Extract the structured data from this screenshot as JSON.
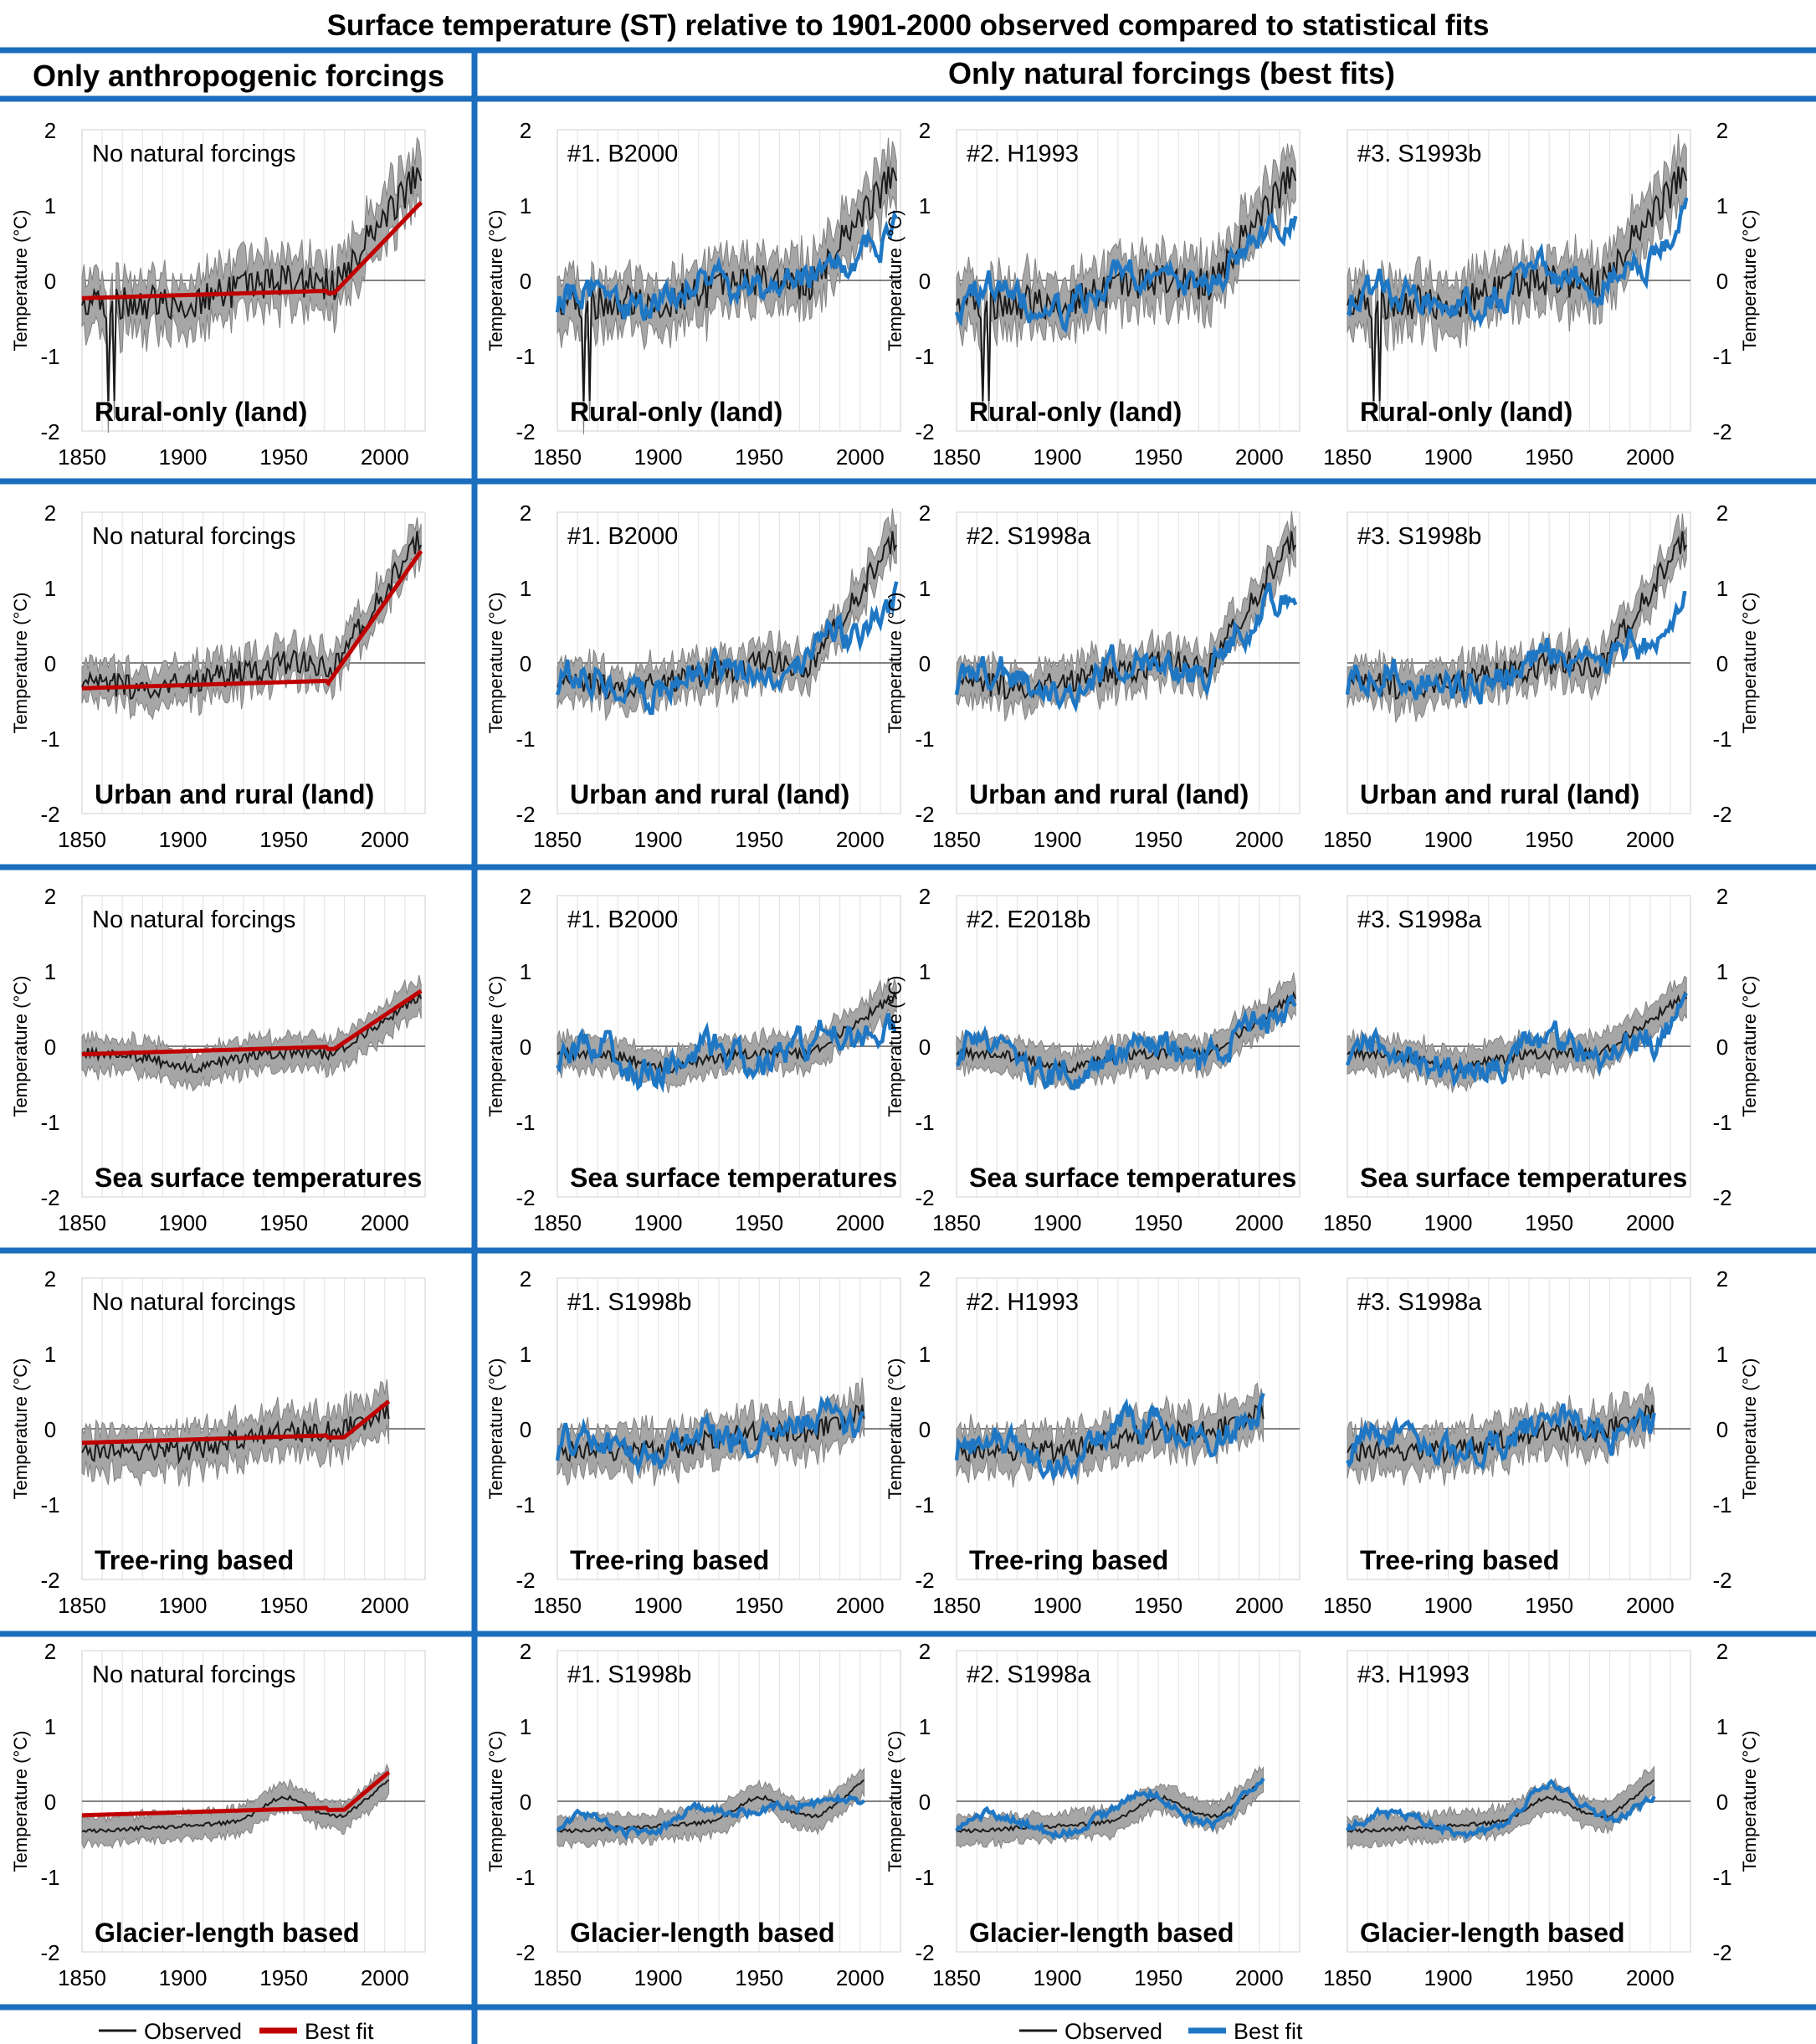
{
  "title": "Surface temperature (ST) relative to 1901-2000 observed compared to statistical fits",
  "left_header": "Only anthropogenic forcings",
  "right_header": "Only natural forcings (best fits)",
  "axis": {
    "ylabel": "Temperature (°C)",
    "yticks": [
      "2",
      "1",
      "0",
      "-1",
      "-2"
    ],
    "xticks": [
      "1850",
      "1900",
      "1950",
      "2000"
    ]
  },
  "legend_left": {
    "observed": "Observed",
    "best_fit": "Best fit"
  },
  "legend_right": {
    "observed": "Observed",
    "best_fit": "Best fit"
  },
  "colors": {
    "observed": "#1a1a1a",
    "uncertainty_band": "#a6a6a6",
    "anthropogenic_fit": "#c00000",
    "natural_fit": "#1f77c4",
    "divider": "#1a6ebd"
  },
  "rows": [
    {
      "name": "Rural-only (land)",
      "panels": [
        "No natural forcings",
        "#1. B2000",
        "#2. H1993",
        "#3. S1993b"
      ]
    },
    {
      "name": "Urban and rural (land)",
      "panels": [
        "No natural forcings",
        "#1. B2000",
        "#2. S1998a",
        "#3. S1998b"
      ]
    },
    {
      "name": "Sea surface temperatures",
      "panels": [
        "No natural forcings",
        "#1. B2000",
        "#2. E2018b",
        "#3. S1998a"
      ]
    },
    {
      "name": "Tree-ring based",
      "panels": [
        "No natural forcings",
        "#1. S1998b",
        "#2. H1993",
        "#3. S1998a"
      ]
    },
    {
      "name": "Glacier-length based",
      "panels": [
        "No natural forcings",
        "#1. S1998b",
        "#2. S1998a",
        "#3. H1993"
      ]
    }
  ],
  "chart_data": {
    "type": "line",
    "xlim": [
      1850,
      2020
    ],
    "ylim": [
      -2,
      2
    ],
    "grid": true,
    "legend_placement": "bottom",
    "series_types": [
      "Observed",
      "Best fit"
    ]
  }
}
